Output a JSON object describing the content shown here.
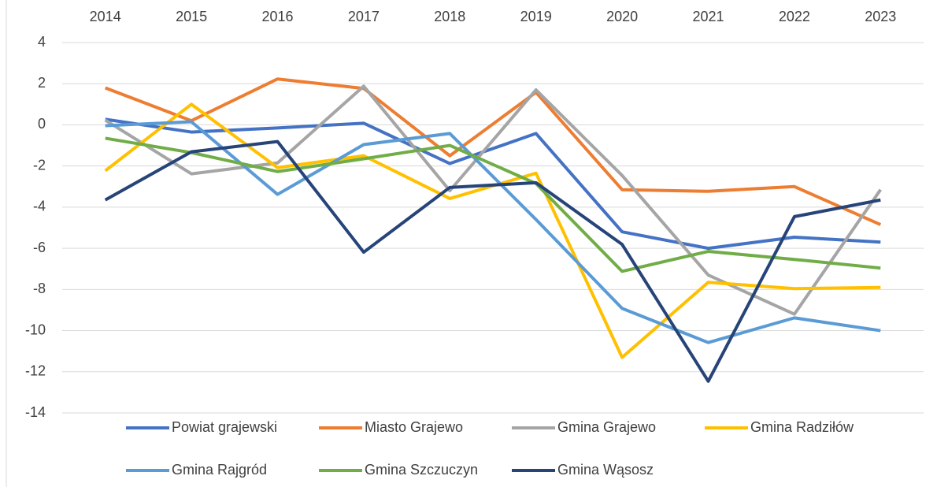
{
  "chart_data": {
    "type": "line",
    "categories": [
      "2014",
      "2015",
      "2016",
      "2017",
      "2018",
      "2019",
      "2020",
      "2021",
      "2022",
      "2023"
    ],
    "series": [
      {
        "name": "Powiat grajewski",
        "color": "#4472c4",
        "values": [
          0.27,
          -0.35,
          -0.15,
          0.08,
          -1.88,
          -0.42,
          -5.2,
          -6.0,
          -5.46,
          -5.7
        ]
      },
      {
        "name": "Miasto Grajewo",
        "color": "#ed7d31",
        "values": [
          1.8,
          0.2,
          2.23,
          1.77,
          -1.5,
          1.58,
          -3.15,
          -3.23,
          -3.0,
          -4.85
        ]
      },
      {
        "name": "Gmina Grajewo",
        "color": "#a5a5a5",
        "values": [
          0.23,
          -2.38,
          -1.85,
          1.88,
          -3.2,
          1.7,
          -2.46,
          -7.3,
          -9.2,
          -3.15
        ]
      },
      {
        "name": "Gmina Radziłów",
        "color": "#ffc000",
        "values": [
          -2.23,
          1.0,
          -2.08,
          -1.5,
          -3.58,
          -2.35,
          -11.3,
          -7.65,
          -7.96,
          -7.9
        ]
      },
      {
        "name": "Gmina Rajgród",
        "color": "#5b9bd5",
        "values": [
          -0.04,
          0.15,
          -3.38,
          -0.96,
          -0.42,
          -4.6,
          -8.92,
          -10.58,
          -9.38,
          -10.0
        ]
      },
      {
        "name": "Gmina Szczuczyn",
        "color": "#70ad47",
        "values": [
          -0.65,
          -1.35,
          -2.27,
          -1.65,
          -1.0,
          -2.85,
          -7.12,
          -6.15,
          -6.54,
          -6.96
        ]
      },
      {
        "name": "Gmina Wąsosz",
        "color": "#264478",
        "values": [
          -3.65,
          -1.31,
          -0.81,
          -6.19,
          -3.04,
          -2.81,
          -5.81,
          -12.46,
          -4.46,
          -3.65
        ]
      }
    ],
    "ylim": [
      -14,
      4
    ],
    "yticks": [
      -14,
      -12,
      -10,
      -8,
      -6,
      -4,
      -2,
      0,
      2,
      4
    ],
    "grid": true,
    "legend": "bottom"
  }
}
